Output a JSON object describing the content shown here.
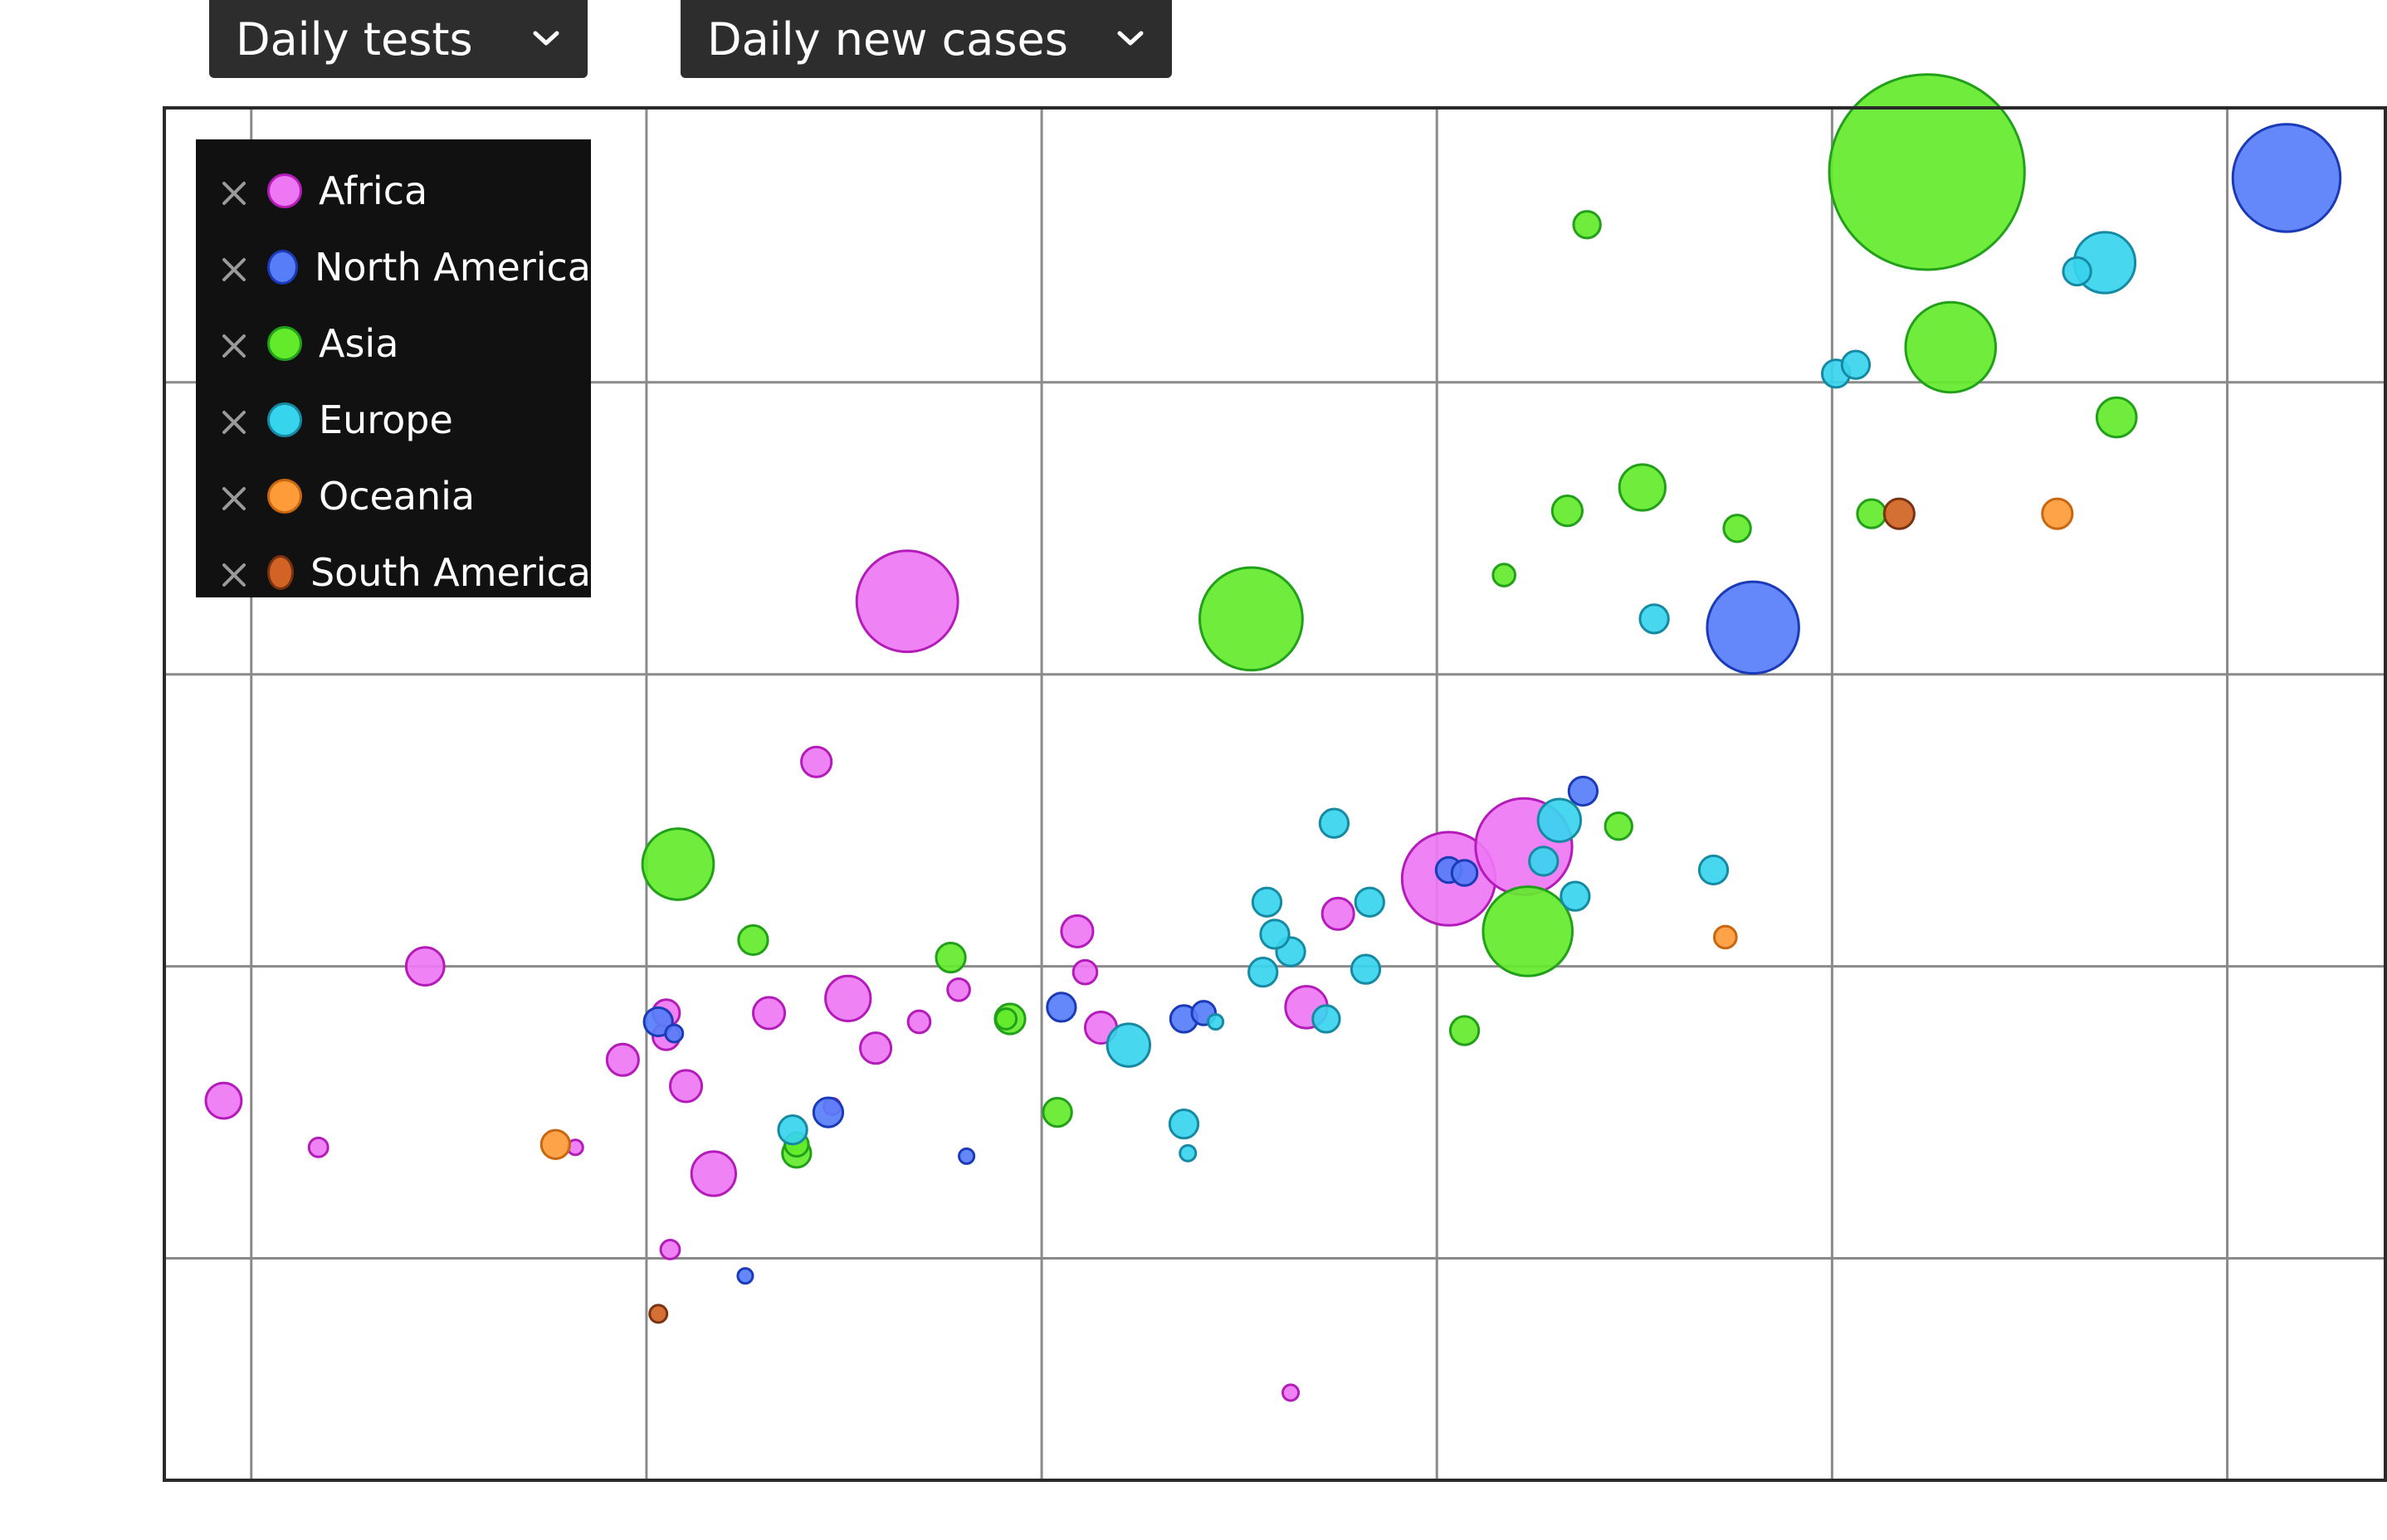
{
  "controls": {
    "x_metric": "Daily tests",
    "y_metric": "Daily new cases",
    "chevron_icon": "chevron-down-icon",
    "remove_icon": "close-icon"
  },
  "legend": [
    {
      "name": "Africa",
      "color": "#ee77f4",
      "stroke": "#b31cb8"
    },
    {
      "name": "North America",
      "color": "#577df8",
      "stroke": "#1a3ab8"
    },
    {
      "name": "Asia",
      "color": "#63ea2b",
      "stroke": "#22a01a"
    },
    {
      "name": "Europe",
      "color": "#37d4ee",
      "stroke": "#168aa2"
    },
    {
      "name": "Oceania",
      "color": "#ff9b38",
      "stroke": "#c96610"
    },
    {
      "name": "South America",
      "color": "#d16424",
      "stroke": "#7a3210"
    }
  ],
  "chart_data": {
    "type": "scatter",
    "variant": "bubble",
    "xlabel": "Daily tests",
    "ylabel": "Daily new cases",
    "xlim": [
      -0.22,
      5.4
    ],
    "ylim": [
      -0.76,
      3.94
    ],
    "grid": true,
    "legend_position": "top-left",
    "axis_tick_labels_shown": false,
    "series": [
      {
        "name": "Africa",
        "points": [
          {
            "x": 1.66,
            "y": 2.25,
            "size": 0.128
          },
          {
            "x": 1.43,
            "y": 1.7,
            "size": 0.038
          },
          {
            "x": 1.17,
            "y": 0.29,
            "size": 0.056
          },
          {
            "x": 0.44,
            "y": 1.0,
            "size": 0.048
          },
          {
            "x": -0.07,
            "y": 0.54,
            "size": 0.045
          },
          {
            "x": 0.17,
            "y": 0.38,
            "size": 0.024
          },
          {
            "x": 0.82,
            "y": 0.38,
            "size": 0.019
          },
          {
            "x": 0.94,
            "y": 0.68,
            "size": 0.04
          },
          {
            "x": 1.06,
            "y": 0.03,
            "size": 0.024
          },
          {
            "x": 1.1,
            "y": 0.59,
            "size": 0.04
          },
          {
            "x": 1.05,
            "y": 0.76,
            "size": 0.034
          },
          {
            "x": 1.31,
            "y": 0.84,
            "size": 0.04
          },
          {
            "x": 1.58,
            "y": 0.72,
            "size": 0.039
          },
          {
            "x": 1.51,
            "y": 0.89,
            "size": 0.057
          },
          {
            "x": 1.47,
            "y": 0.52,
            "size": 0.021
          },
          {
            "x": 1.79,
            "y": 0.92,
            "size": 0.028
          },
          {
            "x": 2.09,
            "y": 1.12,
            "size": 0.04
          },
          {
            "x": 2.11,
            "y": 0.98,
            "size": 0.03
          },
          {
            "x": 2.15,
            "y": 0.79,
            "size": 0.04
          },
          {
            "x": 1.69,
            "y": 0.81,
            "size": 0.028
          },
          {
            "x": 2.67,
            "y": 0.86,
            "size": 0.053
          },
          {
            "x": 2.75,
            "y": 1.18,
            "size": 0.04
          },
          {
            "x": 3.03,
            "y": 1.3,
            "size": 0.118
          },
          {
            "x": 3.22,
            "y": 1.41,
            "size": 0.122
          },
          {
            "x": 2.63,
            "y": -0.46,
            "size": 0.02
          },
          {
            "x": 1.05,
            "y": 0.84,
            "size": 0.034
          }
        ]
      },
      {
        "name": "North America",
        "points": [
          {
            "x": 5.15,
            "y": 3.7,
            "size": 0.136
          },
          {
            "x": 3.8,
            "y": 2.16,
            "size": 0.116
          },
          {
            "x": 1.03,
            "y": 0.81,
            "size": 0.036
          },
          {
            "x": 1.07,
            "y": 0.77,
            "size": 0.022
          },
          {
            "x": 1.46,
            "y": 0.5,
            "size": 0.037
          },
          {
            "x": 1.81,
            "y": 0.35,
            "size": 0.019
          },
          {
            "x": 2.05,
            "y": 0.86,
            "size": 0.036
          },
          {
            "x": 2.36,
            "y": 0.82,
            "size": 0.034
          },
          {
            "x": 2.41,
            "y": 0.84,
            "size": 0.03
          },
          {
            "x": 1.25,
            "y": -0.06,
            "size": 0.019
          },
          {
            "x": 3.03,
            "y": 1.33,
            "size": 0.032
          },
          {
            "x": 3.07,
            "y": 1.32,
            "size": 0.032
          },
          {
            "x": 3.37,
            "y": 1.6,
            "size": 0.036
          }
        ]
      },
      {
        "name": "Asia",
        "points": [
          {
            "x": 4.24,
            "y": 3.72,
            "size": 0.247
          },
          {
            "x": 4.3,
            "y": 3.12,
            "size": 0.114
          },
          {
            "x": 2.53,
            "y": 2.19,
            "size": 0.13
          },
          {
            "x": 1.08,
            "y": 1.35,
            "size": 0.09
          },
          {
            "x": 1.27,
            "y": 1.09,
            "size": 0.037
          },
          {
            "x": 1.77,
            "y": 1.03,
            "size": 0.037
          },
          {
            "x": 1.92,
            "y": 0.82,
            "size": 0.038
          },
          {
            "x": 1.91,
            "y": 0.82,
            "size": 0.026
          },
          {
            "x": 2.04,
            "y": 0.5,
            "size": 0.036
          },
          {
            "x": 3.38,
            "y": 3.54,
            "size": 0.034
          },
          {
            "x": 3.17,
            "y": 2.34,
            "size": 0.028
          },
          {
            "x": 3.52,
            "y": 2.64,
            "size": 0.058
          },
          {
            "x": 3.33,
            "y": 2.56,
            "size": 0.038
          },
          {
            "x": 3.76,
            "y": 2.5,
            "size": 0.034
          },
          {
            "x": 4.1,
            "y": 2.55,
            "size": 0.036
          },
          {
            "x": 4.72,
            "y": 2.88,
            "size": 0.05
          },
          {
            "x": 3.46,
            "y": 1.48,
            "size": 0.034
          },
          {
            "x": 3.23,
            "y": 1.12,
            "size": 0.113
          },
          {
            "x": 3.07,
            "y": 0.78,
            "size": 0.036
          },
          {
            "x": 1.38,
            "y": 0.36,
            "size": 0.036
          },
          {
            "x": 1.38,
            "y": 0.39,
            "size": 0.03
          }
        ]
      },
      {
        "name": "Europe",
        "points": [
          {
            "x": 4.69,
            "y": 3.41,
            "size": 0.077
          },
          {
            "x": 4.62,
            "y": 3.38,
            "size": 0.035
          },
          {
            "x": 4.01,
            "y": 3.03,
            "size": 0.035
          },
          {
            "x": 4.06,
            "y": 3.06,
            "size": 0.035
          },
          {
            "x": 3.55,
            "y": 2.19,
            "size": 0.036
          },
          {
            "x": 3.31,
            "y": 1.5,
            "size": 0.054
          },
          {
            "x": 3.27,
            "y": 1.36,
            "size": 0.036
          },
          {
            "x": 3.35,
            "y": 1.24,
            "size": 0.036
          },
          {
            "x": 3.7,
            "y": 1.33,
            "size": 0.036
          },
          {
            "x": 2.74,
            "y": 1.49,
            "size": 0.036
          },
          {
            "x": 2.83,
            "y": 1.22,
            "size": 0.036
          },
          {
            "x": 2.57,
            "y": 1.22,
            "size": 0.036
          },
          {
            "x": 2.63,
            "y": 1.05,
            "size": 0.036
          },
          {
            "x": 2.59,
            "y": 1.11,
            "size": 0.036
          },
          {
            "x": 2.56,
            "y": 0.98,
            "size": 0.036
          },
          {
            "x": 2.72,
            "y": 0.82,
            "size": 0.034
          },
          {
            "x": 2.82,
            "y": 0.99,
            "size": 0.036
          },
          {
            "x": 2.22,
            "y": 0.73,
            "size": 0.054
          },
          {
            "x": 2.44,
            "y": 0.81,
            "size": 0.019
          },
          {
            "x": 2.36,
            "y": 0.46,
            "size": 0.036
          },
          {
            "x": 2.37,
            "y": 0.36,
            "size": 0.02
          },
          {
            "x": 1.37,
            "y": 0.44,
            "size": 0.036
          }
        ]
      },
      {
        "name": "Oceania",
        "points": [
          {
            "x": 4.57,
            "y": 2.55,
            "size": 0.038
          },
          {
            "x": 3.73,
            "y": 1.1,
            "size": 0.028
          },
          {
            "x": 0.77,
            "y": 0.39,
            "size": 0.036
          }
        ]
      },
      {
        "name": "South America",
        "points": [
          {
            "x": 4.17,
            "y": 2.55,
            "size": 0.038
          },
          {
            "x": 1.03,
            "y": -0.19,
            "size": 0.022
          }
        ]
      }
    ]
  }
}
